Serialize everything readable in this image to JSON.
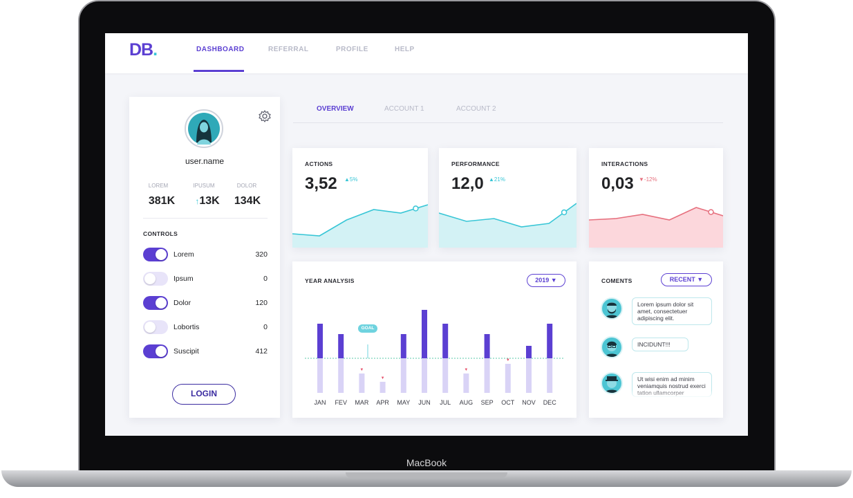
{
  "device": {
    "brand": "MacBook"
  },
  "logo": {
    "text": "DB",
    "dot": "."
  },
  "nav": [
    {
      "label": "DASHBOARD",
      "active": true
    },
    {
      "label": "REFERRAL",
      "active": false
    },
    {
      "label": "PROFILE",
      "active": false
    },
    {
      "label": "HELP",
      "active": false
    }
  ],
  "profile": {
    "username": "user.name",
    "stats": [
      {
        "label": "LOREM",
        "value": "381K"
      },
      {
        "label": "IPUSUM",
        "value": "13K",
        "arrow": "↑"
      },
      {
        "label": "DOLOR",
        "value": "134K"
      }
    ],
    "controls_title": "CONTROLS",
    "controls": [
      {
        "label": "Lorem",
        "value": "320",
        "on": true
      },
      {
        "label": "Ipsum",
        "value": "0",
        "on": false
      },
      {
        "label": "Dolor",
        "value": "120",
        "on": true
      },
      {
        "label": "Lobortis",
        "value": "0",
        "on": false
      },
      {
        "label": "Suscipit",
        "value": "412",
        "on": true
      }
    ],
    "login_label": "LOGIN"
  },
  "subtabs": [
    {
      "label": "OVERVIEW",
      "active": true
    },
    {
      "label": "ACCOUNT 1",
      "active": false
    },
    {
      "label": "ACCOUNT 2",
      "active": false
    }
  ],
  "kpis": [
    {
      "title": "ACTIONS",
      "value": "3,52",
      "change": "▲5%",
      "trend": "up",
      "color": "#38c6d6",
      "fill": "#d3f2f5",
      "spark": [
        20,
        17,
        40,
        55,
        50,
        62
      ]
    },
    {
      "title": "PERFORMANCE",
      "value": "12,0",
      "change": "▲21%",
      "trend": "up",
      "color": "#38c6d6",
      "fill": "#d3f2f5",
      "spark": [
        50,
        38,
        42,
        30,
        35,
        64
      ]
    },
    {
      "title": "INTERACTIONS",
      "value": "0,03",
      "change": "▼-12%",
      "trend": "down",
      "color": "#e6707e",
      "fill": "#fcd7dc",
      "spark": [
        40,
        42,
        48,
        40,
        58,
        46
      ]
    }
  ],
  "year_analysis": {
    "title": "YEAR ANALYSIS",
    "year_select": "2019 ▼",
    "goal_label": "GOAL"
  },
  "chart_data": {
    "type": "bar",
    "categories": [
      "JAN",
      "FEV",
      "MAR",
      "APR",
      "MAY",
      "JUN",
      "JUL",
      "AUG",
      "SEP",
      "OCT",
      "NOV",
      "DEC"
    ],
    "goal": 50,
    "values": [
      100,
      85,
      28,
      16,
      85,
      120,
      100,
      28,
      85,
      42,
      68,
      100
    ],
    "ylim": [
      0,
      130
    ]
  },
  "comments": {
    "title": "COMENTS",
    "filter": "RECENT ▼",
    "items": [
      {
        "text": "Lorem ipsum dolor sit amet, consectetuer adipiscing elit."
      },
      {
        "text": "INCIDUNT!!!"
      },
      {
        "text": "Ut wisi enim ad minim veniamquis nostrud exerci tation ullamcorper"
      }
    ]
  }
}
